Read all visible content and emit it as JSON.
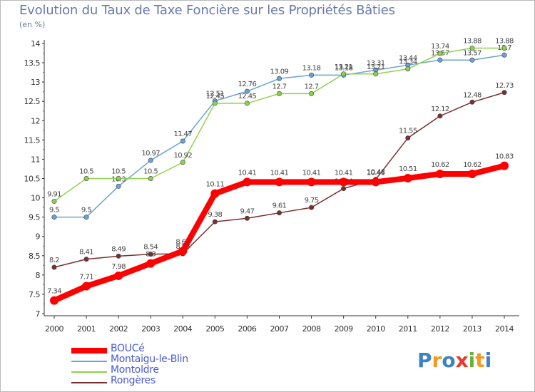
{
  "chart_data": {
    "type": "line",
    "title": "Evolution du Taux de Taxe Foncière sur les Propriétés Bâties",
    "subtitle": "(en %)",
    "xlabel": "",
    "ylabel": "(en %)",
    "ylim": [
      7,
      14
    ],
    "categories": [
      "2000",
      "2001",
      "2002",
      "2003",
      "2004",
      "2005",
      "2006",
      "2007",
      "2008",
      "2009",
      "2010",
      "2011",
      "2012",
      "2013",
      "2014"
    ],
    "yticks": [
      "7",
      "7.5",
      "8",
      "8.5",
      "9",
      "9.5",
      "10",
      "10.5",
      "11",
      "11.5",
      "12",
      "12.5",
      "13",
      "13.5",
      "14"
    ],
    "series": [
      {
        "name": "BOUCé",
        "color": "#ff0000",
        "values": [
          7.34,
          7.71,
          7.98,
          8.3,
          8.62,
          10.11,
          10.41,
          10.41,
          10.41,
          10.41,
          10.41,
          10.51,
          10.62,
          10.62,
          10.83
        ],
        "labels": [
          "7.34",
          "7.71",
          "7.98",
          "8.3",
          "8.62",
          "10.11",
          "10.41",
          "10.41",
          "10.41",
          "10.41",
          "10.41",
          "10.51",
          "10.62",
          "10.62",
          "10.83"
        ]
      },
      {
        "name": "Montaigu-le-Blin",
        "color": "#6aa3d4",
        "values": [
          9.5,
          9.5,
          10.3,
          10.97,
          11.47,
          12.51,
          12.76,
          13.09,
          13.18,
          13.18,
          13.31,
          13.44,
          13.57,
          13.57,
          13.7
        ],
        "labels": [
          "9.5",
          "9.5",
          "10.3",
          "10.97",
          "11.47",
          "12.51",
          "12.76",
          "13.09",
          "13.18",
          "13.18",
          "13.31",
          "13.44",
          "13.57",
          "13.57",
          "13.7"
        ]
      },
      {
        "name": "Montoldre",
        "color": "#90d050",
        "values": [
          9.91,
          10.5,
          10.5,
          10.5,
          10.92,
          12.45,
          12.45,
          12.7,
          12.7,
          13.21,
          13.21,
          13.34,
          13.74,
          13.88,
          13.88
        ],
        "labels": [
          "9.91",
          "10.5",
          "10.5",
          "10.5",
          "10.92",
          "12.45",
          "12.45",
          "12.7",
          "12.7",
          "13.21",
          "13.21",
          "13.34",
          "13.74",
          "13.88",
          "13.88"
        ]
      },
      {
        "name": "Rongères",
        "color": "#7a2f2f",
        "values": [
          8.2,
          8.41,
          8.49,
          8.54,
          8.55,
          9.38,
          9.47,
          9.61,
          9.75,
          10.24,
          10.48,
          11.55,
          12.12,
          12.48,
          12.73
        ],
        "labels": [
          "8.2",
          "8.41",
          "8.49",
          "8.54",
          "8.55",
          "9.38",
          "9.47",
          "9.61",
          "9.75",
          "10.24",
          "10.48",
          "11.55",
          "12.12",
          "12.48",
          "12.73"
        ]
      }
    ],
    "legend": "bottom-left",
    "grid": false
  },
  "logo": {
    "text": "Proxiti",
    "letters": [
      "P",
      "r",
      "o",
      "x",
      "i",
      "t",
      "i"
    ]
  }
}
